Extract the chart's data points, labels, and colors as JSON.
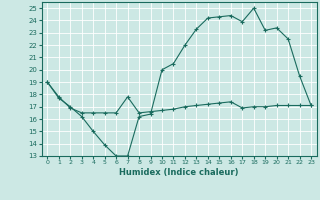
{
  "title": "",
  "xlabel": "Humidex (Indice chaleur)",
  "xlim": [
    -0.5,
    23.5
  ],
  "ylim": [
    13,
    25.5
  ],
  "yticks": [
    13,
    14,
    15,
    16,
    17,
    18,
    19,
    20,
    21,
    22,
    23,
    24,
    25
  ],
  "xticks": [
    0,
    1,
    2,
    3,
    4,
    5,
    6,
    7,
    8,
    9,
    10,
    11,
    12,
    13,
    14,
    15,
    16,
    17,
    18,
    19,
    20,
    21,
    22,
    23
  ],
  "bg_color": "#cce8e4",
  "line_color": "#1a6b5e",
  "grid_color": "#ffffff",
  "line1_x": [
    0,
    1,
    2,
    3,
    4,
    5,
    6,
    7,
    8,
    9,
    10,
    11,
    12,
    13,
    14,
    15,
    16,
    17,
    18,
    19,
    20,
    21,
    22,
    23
  ],
  "line1_y": [
    19.0,
    17.7,
    17.0,
    16.2,
    15.0,
    13.9,
    13.0,
    13.0,
    16.2,
    16.4,
    20.0,
    20.5,
    22.0,
    23.3,
    24.2,
    24.3,
    24.4,
    23.9,
    25.0,
    23.2,
    23.4,
    22.5,
    19.5,
    17.1
  ],
  "line2_x": [
    0,
    1,
    2,
    3,
    4,
    5,
    6,
    7,
    8,
    9,
    10,
    11,
    12,
    13,
    14,
    15,
    16,
    17,
    18,
    19,
    20,
    21,
    22,
    23
  ],
  "line2_y": [
    19.0,
    17.8,
    16.9,
    16.5,
    16.5,
    16.5,
    16.5,
    17.8,
    16.5,
    16.6,
    16.7,
    16.8,
    17.0,
    17.1,
    17.2,
    17.3,
    17.4,
    16.9,
    17.0,
    17.0,
    17.1,
    17.1,
    17.1,
    17.1
  ]
}
